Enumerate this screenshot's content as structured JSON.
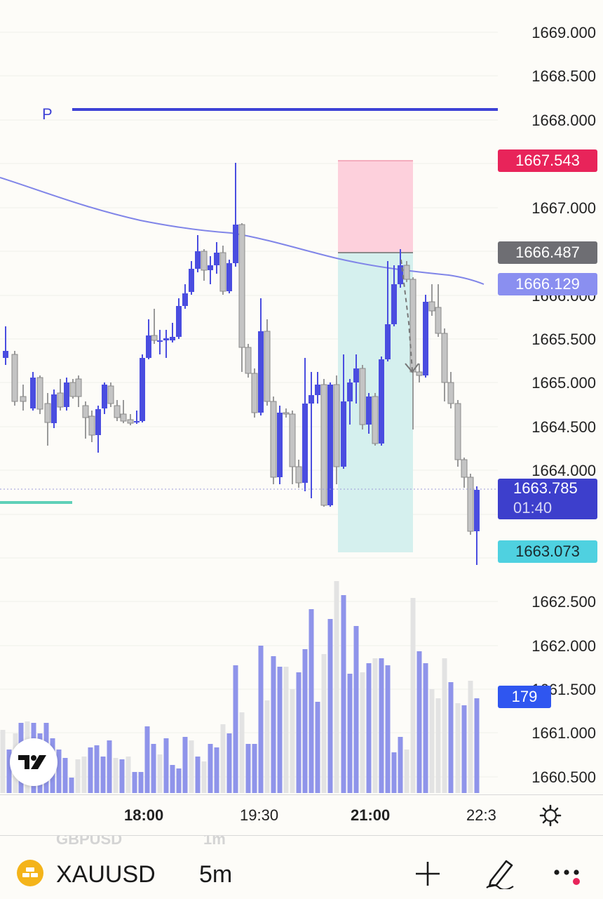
{
  "price_axis": {
    "ticks": [
      "1669.000",
      "1668.500",
      "1668.000",
      "1667.000",
      "1666.000",
      "1665.500",
      "1665.000",
      "1664.500",
      "1664.000",
      "1662.500",
      "1662.000",
      "1661.500",
      "1661.000",
      "1660.500"
    ]
  },
  "badges": {
    "stop_loss": "1667.543",
    "entry": "1666.487",
    "moving_average": "1666.129",
    "last_price": "1663.785",
    "countdown": "01:40",
    "take_profit": "1663.073",
    "volume": "179"
  },
  "chart": {
    "pivot_label": "P"
  },
  "time_axis": {
    "labels": [
      {
        "text": "18:00",
        "bold": true
      },
      {
        "text": "19:30",
        "bold": false
      },
      {
        "text": "21:00",
        "bold": true
      },
      {
        "text": "22:3",
        "bold": false
      }
    ]
  },
  "bottom_bar": {
    "ghost_symbol": "GBPUSD",
    "ghost_interval": "1m",
    "symbol": "XAUUSD",
    "interval": "5m"
  },
  "colors": {
    "bull_candle": "#4a4de0",
    "bear_candle": "#c4c4c4",
    "stop_loss_badge": "#e8245a",
    "entry_badge": "#6e6e73",
    "ma_badge": "#8a8ff0",
    "last_price_badge": "#3d3fcc",
    "take_profit_badge": "#4fd1e0",
    "volume_badge": "#2f56f0",
    "pivot_line": "#3e42d6"
  },
  "icons": {
    "logo": "tradingview-logo-icon",
    "settings": "gear-icon",
    "symbol": "gold-bars-icon",
    "add": "plus-icon",
    "draw": "pen-icon",
    "more": "more-dots-icon"
  }
}
